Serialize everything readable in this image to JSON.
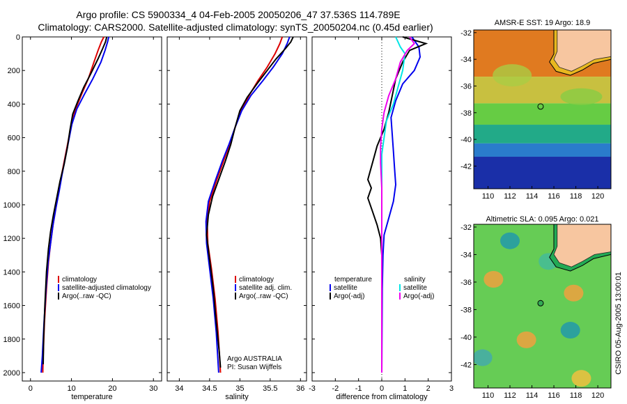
{
  "header": {
    "title_line1": "Argo profile: CS 5900334_4 04-Feb-2005 20050206_47 37.536S 114.789E",
    "title_line2": "Climatology: CARS2000. Satellite-adjusted climatology: synTS_20050204.nc (0.45d earlier)"
  },
  "side_label": "CSIRO 05-Aug-2005 13:00:01",
  "chart_data": [
    {
      "type": "line",
      "name": "temperature",
      "xlabel": "temperature",
      "ylabel": "",
      "xlim": [
        -2,
        32
      ],
      "ylim": [
        2050,
        0
      ],
      "xticks": [
        "0",
        "10",
        "20",
        "30"
      ],
      "xtick_values": [
        0,
        10,
        20,
        30
      ],
      "yticks": [
        "0",
        "200",
        "400",
        "600",
        "800",
        "1000",
        "1200",
        "1400",
        "1600",
        "1800",
        "2000"
      ],
      "ytick_values": [
        0,
        200,
        400,
        600,
        800,
        1000,
        1200,
        1400,
        1600,
        1800,
        2000
      ],
      "legend": [
        "climatology",
        "satellite-adjusted climatology",
        "Argo(..raw -QC)"
      ],
      "legend_colors": [
        "#dd0000",
        "#0000ee",
        "#000000"
      ],
      "series": [
        {
          "color": "#dd0000",
          "points": [
            [
              17.9,
              0
            ],
            [
              17.3,
              30
            ],
            [
              16.5,
              80
            ],
            [
              15.5,
              150
            ],
            [
              14.1,
              250
            ],
            [
              12.5,
              340
            ],
            [
              11.0,
              430
            ],
            [
              10.0,
              520
            ],
            [
              9.2,
              620
            ],
            [
              8.4,
              720
            ],
            [
              7.6,
              820
            ],
            [
              6.9,
              920
            ],
            [
              6.2,
              1020
            ],
            [
              5.5,
              1120
            ],
            [
              4.9,
              1230
            ],
            [
              4.4,
              1340
            ],
            [
              3.9,
              1500
            ],
            [
              3.4,
              1700
            ],
            [
              3.1,
              1900
            ],
            [
              3.0,
              2000
            ]
          ]
        },
        {
          "color": "#0000ee",
          "points": [
            [
              19.1,
              0
            ],
            [
              18.8,
              30
            ],
            [
              18.2,
              80
            ],
            [
              17.2,
              150
            ],
            [
              15.2,
              250
            ],
            [
              13.2,
              340
            ],
            [
              11.3,
              430
            ],
            [
              10.1,
              520
            ],
            [
              9.3,
              620
            ],
            [
              8.5,
              720
            ],
            [
              7.7,
              820
            ],
            [
              7.0,
              920
            ],
            [
              6.2,
              1020
            ],
            [
              5.5,
              1120
            ],
            [
              4.9,
              1230
            ],
            [
              4.3,
              1340
            ],
            [
              3.8,
              1500
            ],
            [
              3.3,
              1700
            ],
            [
              2.9,
              1900
            ],
            [
              2.6,
              2000
            ]
          ]
        },
        {
          "color": "#000000",
          "points": [
            [
              18.6,
              0
            ],
            [
              18.3,
              30
            ],
            [
              17.6,
              70
            ],
            [
              16.5,
              130
            ],
            [
              14.7,
              220
            ],
            [
              13.0,
              300
            ],
            [
              11.6,
              380
            ],
            [
              10.3,
              460
            ],
            [
              9.6,
              560
            ],
            [
              9.0,
              660
            ],
            [
              8.2,
              760
            ],
            [
              7.2,
              860
            ],
            [
              6.4,
              960
            ],
            [
              5.6,
              1060
            ],
            [
              4.9,
              1160
            ],
            [
              4.4,
              1260
            ],
            [
              3.9,
              1400
            ],
            [
              3.5,
              1600
            ],
            [
              3.2,
              1800
            ],
            [
              3.1,
              1950
            ]
          ]
        }
      ]
    },
    {
      "type": "line",
      "name": "salinity",
      "xlabel": "salinity",
      "ylabel": "",
      "xlim": [
        33.8,
        36.1
      ],
      "ylim": [
        2050,
        0
      ],
      "xticks": [
        "34",
        "34.5",
        "35",
        "35.5",
        "36"
      ],
      "xtick_values": [
        34,
        34.5,
        35,
        35.5,
        36
      ],
      "legend": [
        "climatology",
        "satellite adj. clim.",
        "Argo(..raw -QC)"
      ],
      "legend_colors": [
        "#dd0000",
        "#0000ee",
        "#000000"
      ],
      "annotation": [
        "Argo AUSTRALIA",
        "PI: Susan Wijffels"
      ],
      "series": [
        {
          "color": "#dd0000",
          "points": [
            [
              35.7,
              0
            ],
            [
              35.66,
              40
            ],
            [
              35.58,
              100
            ],
            [
              35.45,
              180
            ],
            [
              35.3,
              260
            ],
            [
              35.15,
              350
            ],
            [
              35.02,
              440
            ],
            [
              34.92,
              540
            ],
            [
              34.83,
              640
            ],
            [
              34.73,
              740
            ],
            [
              34.62,
              850
            ],
            [
              34.5,
              980
            ],
            [
              34.46,
              1100
            ],
            [
              34.47,
              1230
            ],
            [
              34.53,
              1380
            ],
            [
              34.59,
              1560
            ],
            [
              34.64,
              1760
            ],
            [
              34.68,
              2000
            ]
          ]
        },
        {
          "color": "#0000ee",
          "points": [
            [
              35.82,
              0
            ],
            [
              35.78,
              40
            ],
            [
              35.7,
              100
            ],
            [
              35.55,
              180
            ],
            [
              35.38,
              260
            ],
            [
              35.18,
              350
            ],
            [
              35.03,
              440
            ],
            [
              34.92,
              540
            ],
            [
              34.82,
              640
            ],
            [
              34.71,
              740
            ],
            [
              34.6,
              850
            ],
            [
              34.48,
              980
            ],
            [
              34.44,
              1100
            ],
            [
              34.45,
              1230
            ],
            [
              34.5,
              1380
            ],
            [
              34.56,
              1560
            ],
            [
              34.61,
              1760
            ],
            [
              34.65,
              2000
            ]
          ]
        },
        {
          "color": "#000000",
          "points": [
            [
              35.88,
              0
            ],
            [
              35.84,
              30
            ],
            [
              35.75,
              70
            ],
            [
              35.6,
              130
            ],
            [
              35.45,
              200
            ],
            [
              35.28,
              280
            ],
            [
              35.12,
              360
            ],
            [
              35.0,
              440
            ],
            [
              34.92,
              540
            ],
            [
              34.85,
              640
            ],
            [
              34.76,
              740
            ],
            [
              34.66,
              840
            ],
            [
              34.55,
              950
            ],
            [
              34.48,
              1060
            ],
            [
              34.45,
              1180
            ],
            [
              34.5,
              1330
            ],
            [
              34.56,
              1500
            ],
            [
              34.61,
              1700
            ],
            [
              34.66,
              1880
            ],
            [
              34.68,
              1970
            ]
          ]
        }
      ]
    },
    {
      "type": "line",
      "name": "difference",
      "xlabel": "difference from climatology",
      "ylabel": "",
      "xlim": [
        -3,
        3
      ],
      "ylim": [
        2050,
        0
      ],
      "xticks": [
        "-3",
        "-2",
        "-1",
        "0",
        "1",
        "2",
        "3"
      ],
      "xtick_values": [
        -3,
        -2,
        -1,
        0,
        1,
        2,
        3
      ],
      "legend_title_left": "temperature",
      "legend_title_right": "salinity",
      "legend_left": [
        "satellite",
        "Argo(-adj)"
      ],
      "legend_right": [
        "satellite",
        "Argo(-adj)"
      ],
      "legend_left_colors": [
        "#0000ee",
        "#000000"
      ],
      "legend_right_colors": [
        "#00e5e5",
        "#ee00ee"
      ],
      "series": [
        {
          "color": "#0000ee",
          "points": [
            [
              1.3,
              0
            ],
            [
              1.6,
              60
            ],
            [
              1.65,
              120
            ],
            [
              1.4,
              200
            ],
            [
              0.9,
              280
            ],
            [
              0.6,
              380
            ],
            [
              0.4,
              480
            ],
            [
              0.45,
              580
            ],
            [
              0.5,
              680
            ],
            [
              0.55,
              780
            ],
            [
              0.6,
              880
            ],
            [
              0.5,
              980
            ],
            [
              0.3,
              1080
            ],
            [
              0.1,
              1180
            ],
            [
              0.05,
              1300
            ],
            [
              0.02,
              1500
            ],
            [
              0.0,
              2000
            ]
          ]
        },
        {
          "color": "#000000",
          "points": [
            [
              0.9,
              0
            ],
            [
              1.9,
              40
            ],
            [
              1.2,
              80
            ],
            [
              0.9,
              150
            ],
            [
              0.6,
              250
            ],
            [
              0.45,
              350
            ],
            [
              0.3,
              450
            ],
            [
              0.1,
              550
            ],
            [
              -0.2,
              650
            ],
            [
              -0.4,
              750
            ],
            [
              -0.6,
              850
            ],
            [
              -0.45,
              900
            ],
            [
              -0.6,
              960
            ],
            [
              -0.4,
              1040
            ],
            [
              -0.2,
              1120
            ],
            [
              -0.05,
              1200
            ],
            [
              0.0,
              1300
            ],
            [
              0.0,
              2000
            ]
          ]
        },
        {
          "color": "#00e5e5",
          "points": [
            [
              0.6,
              0
            ],
            [
              0.8,
              60
            ],
            [
              1.0,
              100
            ],
            [
              0.9,
              200
            ],
            [
              0.7,
              300
            ],
            [
              0.5,
              400
            ],
            [
              0.2,
              500
            ],
            [
              0.1,
              600
            ],
            [
              0.0,
              700
            ],
            [
              0.0,
              800
            ],
            [
              0.0,
              900
            ],
            [
              0.0,
              1000
            ],
            [
              0.0,
              1200
            ],
            [
              0.0,
              1500
            ],
            [
              0.0,
              2000
            ]
          ]
        },
        {
          "color": "#ee00ee",
          "points": [
            [
              1.2,
              0
            ],
            [
              1.4,
              40
            ],
            [
              1.1,
              80
            ],
            [
              0.8,
              150
            ],
            [
              0.6,
              250
            ],
            [
              0.3,
              350
            ],
            [
              0.1,
              450
            ],
            [
              0.0,
              550
            ],
            [
              -0.05,
              650
            ],
            [
              -0.05,
              750
            ],
            [
              0.0,
              900
            ],
            [
              0.0,
              1000
            ],
            [
              0.0,
              1200
            ],
            [
              0.0,
              1500
            ],
            [
              0.0,
              2000
            ]
          ]
        }
      ]
    },
    {
      "type": "heatmap",
      "name": "sst-map",
      "title": "AMSR-E SST: 19 Argo: 18.9",
      "xlim": [
        108.7,
        121.2
      ],
      "ylim": [
        -43.7,
        -31.8
      ],
      "xticks": [
        "110",
        "112",
        "114",
        "116",
        "118",
        "120"
      ],
      "xtick_values": [
        110,
        112,
        114,
        116,
        118,
        120
      ],
      "yticks": [
        "-32",
        "-34",
        "-36",
        "-38",
        "-40",
        "-42"
      ],
      "ytick_values": [
        -32,
        -34,
        -36,
        -38,
        -40,
        -42
      ],
      "float_position": [
        114.789,
        -37.536
      ],
      "colors": {
        "land": "#f7c6a0",
        "warm": "#e07a20",
        "mid": "#66cc44",
        "cool": "#22aa88",
        "cold": "#1a2fa8"
      }
    },
    {
      "type": "heatmap",
      "name": "sla-map",
      "title": "Altimetric SLA: 0.095 Argo: 0.021",
      "xlim": [
        108.7,
        121.2
      ],
      "ylim": [
        -43.7,
        -31.8
      ],
      "xticks": [
        "110",
        "112",
        "114",
        "116",
        "118",
        "120"
      ],
      "xtick_values": [
        110,
        112,
        114,
        116,
        118,
        120
      ],
      "yticks": [
        "-32",
        "-34",
        "-36",
        "-38",
        "-40",
        "-42"
      ],
      "ytick_values": [
        -32,
        -34,
        -36,
        -38,
        -40,
        -42
      ],
      "float_position": [
        114.789,
        -37.536
      ],
      "colors": {
        "land": "#f7c6a0",
        "base": "#66cc55",
        "high": "#f0a040",
        "low": "#2299aa",
        "shelf": "#22aa55"
      }
    }
  ]
}
